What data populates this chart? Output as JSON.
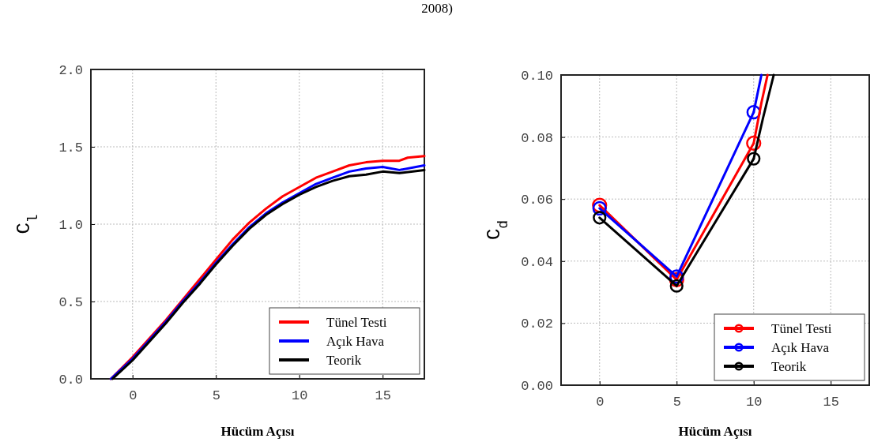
{
  "chart_data": [
    {
      "type": "line",
      "xlabel": "Hücüm Açısı",
      "ylabel": "C$_{l}$",
      "annotations": [
        "2008)"
      ],
      "xlim": [
        -2.5,
        17.5
      ],
      "ylim": [
        0,
        2
      ],
      "xticks": [
        0,
        5,
        10,
        15
      ],
      "yticks": [
        {
          "value": 0,
          "label": "0.0"
        },
        {
          "value": 0.5,
          "label": "0.5"
        },
        {
          "value": 1,
          "label": "1.0"
        },
        {
          "value": 1.5,
          "label": "1.5"
        },
        {
          "value": 2,
          "label": "2.0"
        }
      ],
      "grid": true,
      "legend": "bottom right",
      "line_style": "solid",
      "series": [
        {
          "name": "Tünel Testi",
          "color": "#ff0000",
          "x": [
            -1.3,
            0,
            1,
            2,
            3,
            4,
            5,
            6,
            7,
            8,
            9,
            10,
            11,
            12,
            13,
            14,
            15,
            16,
            16.5,
            17.5
          ],
          "values": [
            0,
            0.14,
            0.26,
            0.38,
            0.51,
            0.64,
            0.77,
            0.9,
            1.01,
            1.1,
            1.18,
            1.24,
            1.3,
            1.34,
            1.38,
            1.4,
            1.41,
            1.41,
            1.43,
            1.44
          ]
        },
        {
          "name": "Açık Hava",
          "color": "#0000ff",
          "x": [
            -1.3,
            0,
            1,
            2,
            3,
            4,
            5,
            6,
            7,
            8,
            9,
            10,
            11,
            12,
            13,
            14,
            15,
            16,
            17.5
          ],
          "values": [
            0,
            0.13,
            0.25,
            0.37,
            0.5,
            0.62,
            0.75,
            0.87,
            0.98,
            1.07,
            1.14,
            1.2,
            1.26,
            1.3,
            1.34,
            1.36,
            1.37,
            1.35,
            1.38
          ]
        },
        {
          "name": "Teorik",
          "color": "#000000",
          "x": [
            -1.2,
            0,
            1,
            2,
            3,
            4,
            5,
            6,
            7,
            8,
            9,
            10,
            11,
            12,
            13,
            14,
            15,
            16,
            17.5
          ],
          "values": [
            0,
            0.12,
            0.24,
            0.36,
            0.49,
            0.61,
            0.74,
            0.86,
            0.97,
            1.06,
            1.13,
            1.19,
            1.24,
            1.28,
            1.31,
            1.32,
            1.34,
            1.33,
            1.35
          ]
        }
      ]
    },
    {
      "type": "line",
      "xlabel": "Hücüm Açısı",
      "ylabel": "C$_{d}$",
      "xlim": [
        -2.5,
        17.5
      ],
      "ylim": [
        0,
        0.1
      ],
      "xticks": [
        0,
        5,
        10,
        15
      ],
      "yticks": [
        {
          "value": 0,
          "label": "0.00"
        },
        {
          "value": 0.02,
          "label": "0.02"
        },
        {
          "value": 0.04,
          "label": "0.04"
        },
        {
          "value": 0.06,
          "label": "0.06"
        },
        {
          "value": 0.08,
          "label": "0.08"
        },
        {
          "value": 0.1,
          "label": "0.10"
        }
      ],
      "grid": true,
      "legend": "bottom right",
      "marker": "circle",
      "line_style": "solid",
      "series": [
        {
          "name": "Tünel Testi",
          "color": "#ff0000",
          "x": [
            0,
            5,
            10
          ],
          "values": [
            0.058,
            0.034,
            0.078
          ]
        },
        {
          "name": "Açık Hava",
          "color": "#0000ff",
          "x": [
            0,
            5,
            10
          ],
          "values": [
            0.057,
            0.035,
            0.088
          ]
        },
        {
          "name": "Teorik",
          "color": "#000000",
          "x": [
            0,
            5,
            10
          ],
          "values": [
            0.054,
            0.032,
            0.073
          ]
        },
        {
          "color": "#ff0000",
          "marker": "none",
          "x": [
            10,
            10.5,
            10.9
          ],
          "values": [
            0.078,
            0.091,
            0.1
          ]
        },
        {
          "color": "#0000ff",
          "marker": "none",
          "x": [
            10,
            10.5
          ],
          "values": [
            0.088,
            0.1
          ]
        },
        {
          "color": "#000000",
          "marker": "none",
          "x": [
            10,
            10.6,
            11.3
          ],
          "values": [
            0.073,
            0.086,
            0.1
          ]
        }
      ]
    }
  ]
}
